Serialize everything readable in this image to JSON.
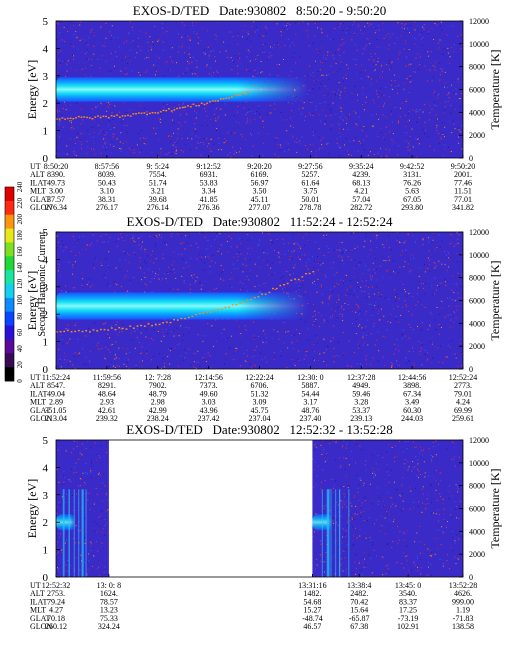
{
  "colorbar": {
    "label": "Second Harmonic Current",
    "ticks": [
      "0",
      "20",
      "40",
      "60",
      "80",
      "100",
      "120",
      "140",
      "160",
      "180",
      "200",
      "220",
      "240"
    ]
  },
  "chart_data": [
    {
      "type": "heatmap",
      "title": "EXOS-D/TED   Date:930802   8:50:20 - 9:50:20",
      "ylabel": "Energy [eV]",
      "y2label": "Temperature [K]",
      "ylim": [
        0,
        5
      ],
      "yticks": [
        "0",
        "1",
        "2",
        "3",
        "4",
        "5"
      ],
      "y2lim": [
        0,
        12000
      ],
      "y2ticks": [
        "0",
        "2000",
        "4000",
        "6000",
        "8000",
        "10000",
        "12000"
      ],
      "band": {
        "center_eV": 2.5,
        "half_width_eV": 0.45
      },
      "data_segments": [
        [
          0,
          1
        ]
      ],
      "temperature_trend": {
        "start_K": 3500,
        "end_K": 5800,
        "end_fraction": 0.47
      },
      "rows": [
        "UT",
        "ALT",
        "ILAT",
        "MLT",
        "GLAT",
        "GLON"
      ],
      "columns": [
        {
          "UT": "8:50:20",
          "ALT": "8390.",
          "ILAT": "49.73",
          "MLT": "3.00",
          "GLAT": "37.57",
          "GLON": "276.34"
        },
        {
          "UT": "8:57:56",
          "ALT": "8039.",
          "ILAT": "50.43",
          "MLT": "3.10",
          "GLAT": "38.31",
          "GLON": "276.17"
        },
        {
          "UT": "9: 5:24",
          "ALT": "7554.",
          "ILAT": "51.74",
          "MLT": "3.21",
          "GLAT": "39.68",
          "GLON": "276.14"
        },
        {
          "UT": "9:12:52",
          "ALT": "6931.",
          "ILAT": "53.83",
          "MLT": "3.34",
          "GLAT": "41.85",
          "GLON": "276.36"
        },
        {
          "UT": "9:20:20",
          "ALT": "6169.",
          "ILAT": "56.97",
          "MLT": "3.50",
          "GLAT": "45.11",
          "GLON": "277.07"
        },
        {
          "UT": "9:27:56",
          "ALT": "5257.",
          "ILAT": "61.64",
          "MLT": "3.75",
          "GLAT": "50.01",
          "GLON": "278.78"
        },
        {
          "UT": "9:35:24",
          "ALT": "4239.",
          "ILAT": "68.13",
          "MLT": "4.21",
          "GLAT": "57.04",
          "GLON": "282.72"
        },
        {
          "UT": "9:42:52",
          "ALT": "3131.",
          "ILAT": "76.26",
          "MLT": "5.63",
          "GLAT": "67.05",
          "GLON": "293.80"
        },
        {
          "UT": "9:50:20",
          "ALT": "2001.",
          "ILAT": "77.46",
          "MLT": "11.51",
          "GLAT": "77.01",
          "GLON": "341.82"
        }
      ]
    },
    {
      "type": "heatmap",
      "title": "EXOS-D/TED   Date:930802   11:52:24 - 12:52:24",
      "ylabel": "Energy [eV]",
      "y2label": "Temperature [K]",
      "ylim": [
        0,
        5
      ],
      "yticks": [
        "0",
        "1",
        "2",
        "3",
        "4",
        "5"
      ],
      "y2lim": [
        0,
        12000
      ],
      "y2ticks": [
        "0",
        "2000",
        "4000",
        "6000",
        "8000",
        "10000",
        "12000"
      ],
      "band": {
        "center_eV": 2.3,
        "half_width_eV": 0.5
      },
      "data_segments": [
        [
          0,
          1
        ]
      ],
      "temperature_trend": {
        "start_K": 3300,
        "end_K": 8600,
        "end_fraction": 0.63
      },
      "rows": [
        "UT",
        "ALT",
        "ILAT",
        "MLT",
        "GLAT",
        "GLON"
      ],
      "columns": [
        {
          "UT": "11:52:24",
          "ALT": "8547.",
          "ILAT": "49.04",
          "MLT": "2.89",
          "GLAT": "-51.05",
          "GLON": "213.04"
        },
        {
          "UT": "11:59:56",
          "ALT": "8291.",
          "ILAT": "48.64",
          "MLT": "2.93",
          "GLAT": "42.61",
          "GLON": "239.32"
        },
        {
          "UT": "12: 7:28",
          "ALT": "7902.",
          "ILAT": "48.79",
          "MLT": "2.98",
          "GLAT": "42.99",
          "GLON": "238.24"
        },
        {
          "UT": "12:14:56",
          "ALT": "7373.",
          "ILAT": "49.60",
          "MLT": "3.03",
          "GLAT": "43.96",
          "GLON": "237.42"
        },
        {
          "UT": "12:22:24",
          "ALT": "6706.",
          "ILAT": "51.32",
          "MLT": "3.09",
          "GLAT": "45.75",
          "GLON": "237.04"
        },
        {
          "UT": "12:30: 0",
          "ALT": "5887.",
          "ILAT": "54.44",
          "MLT": "3.17",
          "GLAT": "48.76",
          "GLON": "237.40"
        },
        {
          "UT": "12:37:28",
          "ALT": "4949.",
          "ILAT": "59.46",
          "MLT": "3.28",
          "GLAT": "53.37",
          "GLON": "239.13"
        },
        {
          "UT": "12:44:56",
          "ALT": "3898.",
          "ILAT": "67.34",
          "MLT": "3.49",
          "GLAT": "60.30",
          "GLON": "244.03"
        },
        {
          "UT": "12:52:24",
          "ALT": "2773.",
          "ILAT": "79.01",
          "MLT": "4.24",
          "GLAT": "69.99",
          "GLON": "259.61"
        }
      ]
    },
    {
      "type": "heatmap",
      "title": "EXOS-D/TED   Date:930802   12:52:32 - 13:52:28",
      "ylabel": "Energy [eV]",
      "y2label": "Temperature [K]",
      "ylim": [
        0,
        5
      ],
      "yticks": [
        "0",
        "1",
        "2",
        "3",
        "4",
        "5"
      ],
      "y2lim": [
        0,
        12000
      ],
      "y2ticks": [
        "0",
        "2000",
        "4000",
        "6000",
        "8000",
        "10000",
        "12000"
      ],
      "band": {
        "center_eV": 2.0,
        "half_width_eV": 0.3
      },
      "data_segments": [
        [
          0,
          0.13
        ],
        [
          0.63,
          1
        ]
      ],
      "rows": [
        "UT",
        "ALT",
        "ILAT",
        "MLT",
        "GLAT",
        "GLON"
      ],
      "columns": [
        {
          "UT": "12:52:32",
          "ALT": "2753.",
          "ILAT": "79.24",
          "MLT": "4.27",
          "GLAT": "70.18",
          "GLON": "260.12"
        },
        {
          "UT": "13: 0: 8",
          "ALT": "1624.",
          "ILAT": "78.57",
          "MLT": "13.23",
          "GLAT": "75.33",
          "GLON": "324.24"
        },
        {
          "UT": "13:31:16",
          "ALT": "1482.",
          "ILAT": "54.68",
          "MLT": "15.27",
          "GLAT": "-48.74",
          "GLON": "46.57"
        },
        {
          "UT": "13:38:4",
          "ALT": "2482.",
          "ILAT": "70.42",
          "MLT": "15.64",
          "GLAT": "-65.87",
          "GLON": "67.38"
        },
        {
          "UT": "13:45: 0",
          "ALT": "3540.",
          "ILAT": "83.37",
          "MLT": "17.25",
          "GLAT": "-73.19",
          "GLON": "102.91"
        },
        {
          "UT": "13:52:28",
          "ALT": "4626.",
          "ILAT": "999.00",
          "MLT": "1.19",
          "GLAT": "-71.83",
          "GLON": "138.58"
        }
      ]
    }
  ]
}
